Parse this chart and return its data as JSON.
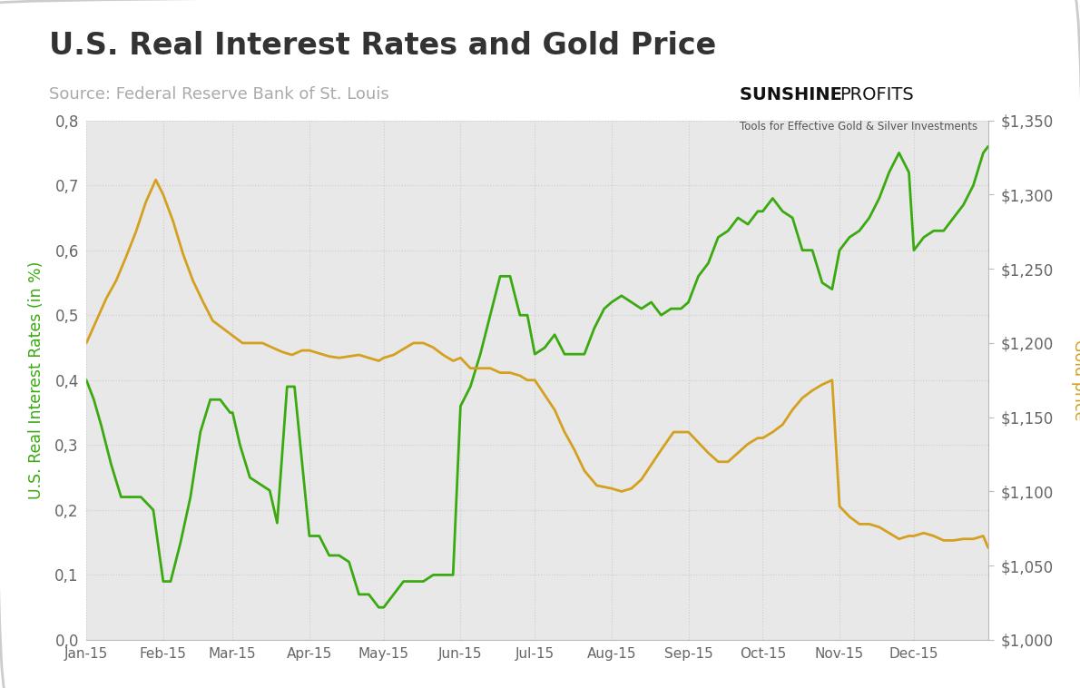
{
  "title": "U.S. Real Interest Rates and Gold Price",
  "source": "Source: Federal Reserve Bank of St. Louis",
  "left_ylabel": "U.S. Real Interest Rates (in %)",
  "right_ylabel": "Gold price",
  "left_ylim": [
    0.0,
    0.8
  ],
  "right_ylim": [
    1000,
    1350
  ],
  "left_ytick_labels": [
    "0,0",
    "0,1",
    "0,2",
    "0,3",
    "0,4",
    "0,5",
    "0,6",
    "0,7",
    "0,8"
  ],
  "right_ytick_labels": [
    "$1,000",
    "$1,050",
    "$1,100",
    "$1,150",
    "$1,200",
    "$1,250",
    "$1,300",
    "$1,350"
  ],
  "xtick_labels": [
    "Jan-15",
    "Feb-15",
    "Mar-15",
    "Apr-15",
    "May-15",
    "Jun-15",
    "Jul-15",
    "Aug-15",
    "Sep-15",
    "Oct-15",
    "Nov-15",
    "Dec-15"
  ],
  "green_color": "#3aaa10",
  "gold_color": "#d4a020",
  "background_color": "#e8e8e8",
  "figure_bg": "#ffffff",
  "title_fontsize": 24,
  "source_fontsize": 13,
  "sunshine_text": "SUNSHINE PROFITS",
  "sunshine_sub": "Tools for Effective Gold & Silver Investments",
  "green_x": [
    0,
    3,
    6,
    10,
    14,
    18,
    22,
    27,
    31,
    34,
    38,
    42,
    46,
    50,
    54,
    58,
    59,
    62,
    66,
    70,
    74,
    77,
    81,
    84,
    90,
    94,
    98,
    102,
    106,
    110,
    114,
    118,
    120,
    124,
    128,
    132,
    136,
    140,
    144,
    148,
    151,
    155,
    159,
    163,
    167,
    171,
    175,
    178,
    181,
    185,
    189,
    193,
    197,
    201,
    205,
    209,
    212,
    216,
    220,
    224,
    228,
    232,
    236,
    240,
    243,
    247,
    251,
    255,
    259,
    263,
    267,
    271,
    273,
    277,
    281,
    285,
    289,
    293,
    297,
    301,
    304,
    308,
    312,
    316,
    320,
    324,
    328,
    332,
    334,
    338,
    342,
    346,
    350,
    354,
    358,
    362,
    364
  ],
  "green_y": [
    0.4,
    0.37,
    0.33,
    0.27,
    0.22,
    0.22,
    0.22,
    0.2,
    0.09,
    0.09,
    0.15,
    0.22,
    0.32,
    0.37,
    0.37,
    0.35,
    0.35,
    0.3,
    0.25,
    0.24,
    0.23,
    0.18,
    0.39,
    0.39,
    0.16,
    0.16,
    0.13,
    0.13,
    0.12,
    0.07,
    0.07,
    0.05,
    0.05,
    0.07,
    0.09,
    0.09,
    0.09,
    0.1,
    0.1,
    0.1,
    0.36,
    0.39,
    0.44,
    0.5,
    0.56,
    0.56,
    0.5,
    0.5,
    0.44,
    0.45,
    0.47,
    0.44,
    0.44,
    0.44,
    0.48,
    0.51,
    0.52,
    0.53,
    0.52,
    0.51,
    0.52,
    0.5,
    0.51,
    0.51,
    0.52,
    0.56,
    0.58,
    0.62,
    0.63,
    0.65,
    0.64,
    0.66,
    0.66,
    0.68,
    0.66,
    0.65,
    0.6,
    0.6,
    0.55,
    0.54,
    0.6,
    0.62,
    0.63,
    0.65,
    0.68,
    0.72,
    0.75,
    0.72,
    0.6,
    0.62,
    0.63,
    0.63,
    0.65,
    0.67,
    0.7,
    0.75,
    0.76
  ],
  "gold_x": [
    0,
    4,
    8,
    12,
    16,
    20,
    24,
    28,
    31,
    35,
    39,
    43,
    47,
    51,
    55,
    59,
    63,
    67,
    71,
    75,
    79,
    83,
    87,
    90,
    94,
    98,
    102,
    106,
    110,
    114,
    118,
    120,
    124,
    128,
    132,
    136,
    140,
    144,
    148,
    151,
    155,
    159,
    163,
    167,
    171,
    175,
    178,
    181,
    185,
    189,
    193,
    197,
    201,
    206,
    212,
    216,
    220,
    224,
    228,
    232,
    237,
    243,
    247,
    251,
    255,
    259,
    263,
    267,
    271,
    273,
    277,
    281,
    285,
    289,
    293,
    297,
    301,
    304,
    308,
    312,
    316,
    320,
    324,
    328,
    332,
    334,
    338,
    342,
    346,
    350,
    354,
    358,
    362,
    364
  ],
  "gold_y": [
    1200,
    1215,
    1230,
    1242,
    1258,
    1275,
    1295,
    1310,
    1300,
    1282,
    1260,
    1242,
    1228,
    1215,
    1210,
    1205,
    1200,
    1200,
    1200,
    1197,
    1194,
    1192,
    1195,
    1195,
    1193,
    1191,
    1190,
    1191,
    1192,
    1190,
    1188,
    1190,
    1192,
    1196,
    1200,
    1200,
    1197,
    1192,
    1188,
    1190,
    1183,
    1183,
    1183,
    1180,
    1180,
    1178,
    1175,
    1175,
    1165,
    1155,
    1140,
    1128,
    1114,
    1104,
    1102,
    1100,
    1102,
    1108,
    1118,
    1128,
    1140,
    1140,
    1133,
    1126,
    1120,
    1120,
    1126,
    1132,
    1136,
    1136,
    1140,
    1145,
    1155,
    1163,
    1168,
    1172,
    1175,
    1090,
    1083,
    1078,
    1078,
    1076,
    1072,
    1068,
    1070,
    1070,
    1072,
    1070,
    1067,
    1067,
    1068,
    1068,
    1070,
    1062
  ]
}
